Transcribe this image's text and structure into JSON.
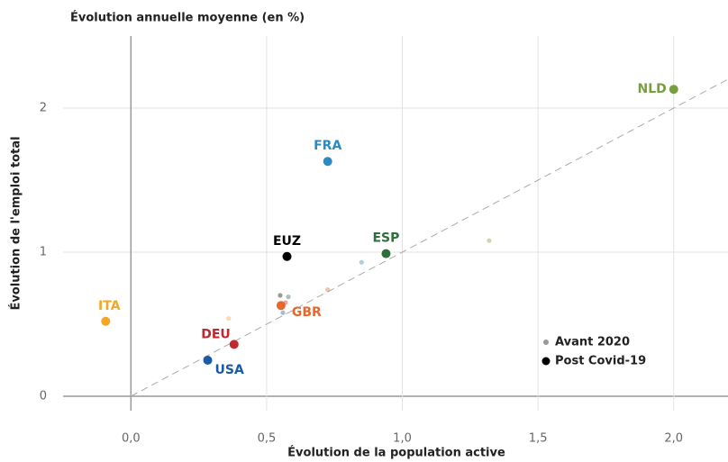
{
  "chart_data": {
    "type": "scatter",
    "title": "Évolution annuelle moyenne (en %)",
    "x_label": "Évolution de la population active",
    "y_label": "Évolution de l'emploi total",
    "categories": [
      "NLD",
      "FRA",
      "EUZ",
      "ESP",
      "ITA",
      "GBR",
      "DEU",
      "USA"
    ],
    "colors": [
      "#76a03c",
      "#2a8ac6",
      "#000000",
      "#2e6f3b",
      "#f5a623",
      "#e8672a",
      "#c0282d",
      "#1a5aa6"
    ],
    "series": [
      {
        "name": "Avant 2020",
        "color": "#999999",
        "x": [
          1.32,
          0.85,
          0.55,
          0.58,
          0.36,
          0.725,
          0.57,
          0.56
        ],
        "values": [
          1.08,
          0.93,
          0.7,
          0.69,
          0.54,
          0.74,
          0.65,
          0.58
        ]
      },
      {
        "name": "Post Covid-19",
        "color": "#000000",
        "x": [
          2.0,
          0.725,
          0.575,
          0.94,
          -0.093,
          0.553,
          0.38,
          0.283
        ],
        "values": [
          2.13,
          1.63,
          0.97,
          0.99,
          0.52,
          0.63,
          0.36,
          0.25
        ]
      }
    ],
    "xlim": [
      -0.25,
      2.2
    ],
    "ylim": [
      -0.1,
      2.5
    ],
    "xticks": [
      {
        "value": 0,
        "label": "0,0"
      },
      {
        "value": 0.5,
        "label": "0,5"
      },
      {
        "value": 1,
        "label": "1,0"
      },
      {
        "value": 1.5,
        "label": "1,5"
      },
      {
        "value": 2,
        "label": "2,0"
      }
    ],
    "yticks": [
      0,
      1,
      2
    ],
    "grid": true,
    "legend": "lower right"
  }
}
